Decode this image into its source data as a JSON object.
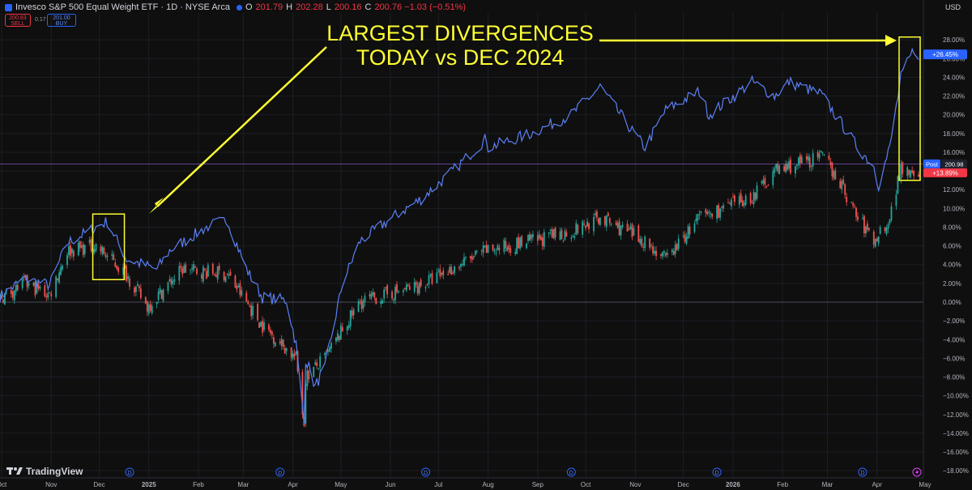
{
  "header": {
    "title": "Invesco S&P 500 Equal Weight ETF · 1D · NYSE Arca",
    "ohlc": {
      "o_label": "O",
      "o": "201.79",
      "h_label": "H",
      "h": "202.28",
      "l_label": "L",
      "l": "200.16",
      "c_label": "C",
      "c": "200.76 −1.03 (−0.51%)"
    },
    "sell_price": "200.83",
    "sell_label": "SELL",
    "spread": "0.17",
    "buy_price": "201.00",
    "buy_label": "BUY"
  },
  "currency": "USD",
  "brand": "TradingView",
  "annotation": {
    "line1": "LARGEST DIVERGENCES",
    "line2": "TODAY vs DEC 2024"
  },
  "colors": {
    "spx_line": "#5b80f6",
    "candle_up": "#26a69a",
    "candle_down": "#ef5350",
    "annotation": "#ffff33",
    "price_line": "#7e57c2"
  },
  "chart_data": {
    "type": "line",
    "title": "",
    "x_start": "2024-09-30",
    "x_end": "2026-04-30",
    "x_ticks": [
      "Oct",
      "Nov",
      "Dec",
      "2025",
      "Feb",
      "Mar",
      "Apr",
      "May",
      "Jun",
      "Jul",
      "Aug",
      "Sep",
      "Oct",
      "Nov",
      "Dec",
      "2026",
      "Feb",
      "Mar",
      "Apr",
      "May"
    ],
    "y_ticks": [
      "28.00%",
      "26.00%",
      "24.00%",
      "22.00%",
      "20.00%",
      "18.00%",
      "16.00%",
      "14.00%",
      "12.00%",
      "10.00%",
      "8.00%",
      "6.00%",
      "4.00%",
      "2.00%",
      "0.00%",
      "−2.00%",
      "−4.00%",
      "−6.00%",
      "−8.00%",
      "−10.00%",
      "−12.00%",
      "−14.00%",
      "−16.00%",
      "−18.00%"
    ],
    "ylim": [
      -18.5,
      30
    ],
    "grid": true,
    "series": [
      {
        "name": "",
        "style": "line",
        "color": "#5b80f6",
        "x": [
          "2024-09-30",
          "2024-10-15",
          "2024-10-31",
          "2024-11-11",
          "2024-11-29",
          "2024-12-06",
          "2024-12-18",
          "2025-01-06",
          "2025-01-14",
          "2025-02-07",
          "2025-02-19",
          "2025-03-03",
          "2025-03-13",
          "2025-03-28",
          "2025-04-03",
          "2025-04-08",
          "2025-04-09",
          "2025-04-15",
          "2025-04-21",
          "2025-05-02",
          "2025-05-13",
          "2025-06-02",
          "2025-06-20",
          "2025-07-10",
          "2025-07-31",
          "2025-08-01",
          "2025-08-28",
          "2025-09-22",
          "2025-10-10",
          "2025-10-29",
          "2025-11-07",
          "2025-11-20",
          "2025-12-11",
          "2025-12-17",
          "2026-01-13",
          "2026-01-27",
          "2026-02-05",
          "2026-02-25",
          "2026-03-10",
          "2026-03-20",
          "2026-03-30",
          "2026-04-02",
          "2026-04-09",
          "2026-04-16",
          "2026-04-24",
          "2026-04-27"
        ],
        "y": [
          0.6,
          2.5,
          1.8,
          6.3,
          8,
          8.6,
          4.6,
          3.5,
          5.5,
          8.1,
          8.8,
          3.5,
          0.5,
          0.2,
          -4.5,
          -13,
          -6,
          -9,
          -7,
          2,
          6.5,
          9,
          11,
          14,
          17.5,
          16.5,
          18,
          20,
          23,
          18.5,
          16.5,
          20.5,
          22.5,
          20,
          23.5,
          22,
          23.5,
          22.2,
          19,
          16.5,
          14.5,
          12.5,
          16.5,
          24,
          27,
          26.45
        ]
      },
      {
        "name": "",
        "style": "candlestick",
        "up_color": "#26a69a",
        "down_color": "#ef5350",
        "x": [
          "2024-09-30",
          "2024-10-15",
          "2024-10-31",
          "2024-11-11",
          "2024-11-29",
          "2024-12-18",
          "2024-12-31",
          "2025-01-22",
          "2025-02-19",
          "2025-03-13",
          "2025-04-03",
          "2025-04-08",
          "2025-04-09",
          "2025-04-21",
          "2025-05-13",
          "2025-06-20",
          "2025-07-31",
          "2025-08-28",
          "2025-09-22",
          "2025-10-10",
          "2025-11-07",
          "2025-11-20",
          "2025-12-11",
          "2026-01-13",
          "2026-01-27",
          "2026-02-25",
          "2026-03-05",
          "2026-03-20",
          "2026-03-30",
          "2026-04-09",
          "2026-04-16",
          "2026-04-27"
        ],
        "y": [
          0.4,
          2,
          0.8,
          5.5,
          6,
          3,
          -0.5,
          3.5,
          3,
          -2.5,
          -6,
          -13,
          -8,
          -6,
          0,
          1.8,
          5.5,
          6.5,
          7.5,
          9,
          6.5,
          4.5,
          9,
          11.2,
          14,
          15.5,
          14,
          9,
          6.5,
          9,
          14.5,
          13.89
        ]
      }
    ],
    "last_values": {
      "spx_pct": "+26.45%",
      "etf_pct": "+13.89%",
      "post_label": "Post",
      "post_price": "200.98"
    },
    "event_markers": {
      "label": "D",
      "dates": [
        "2024-12-20",
        "2025-03-24",
        "2025-06-23",
        "2025-09-22",
        "2025-12-22",
        "2026-03-23"
      ],
      "final_icon": "lightning-icon"
    }
  }
}
